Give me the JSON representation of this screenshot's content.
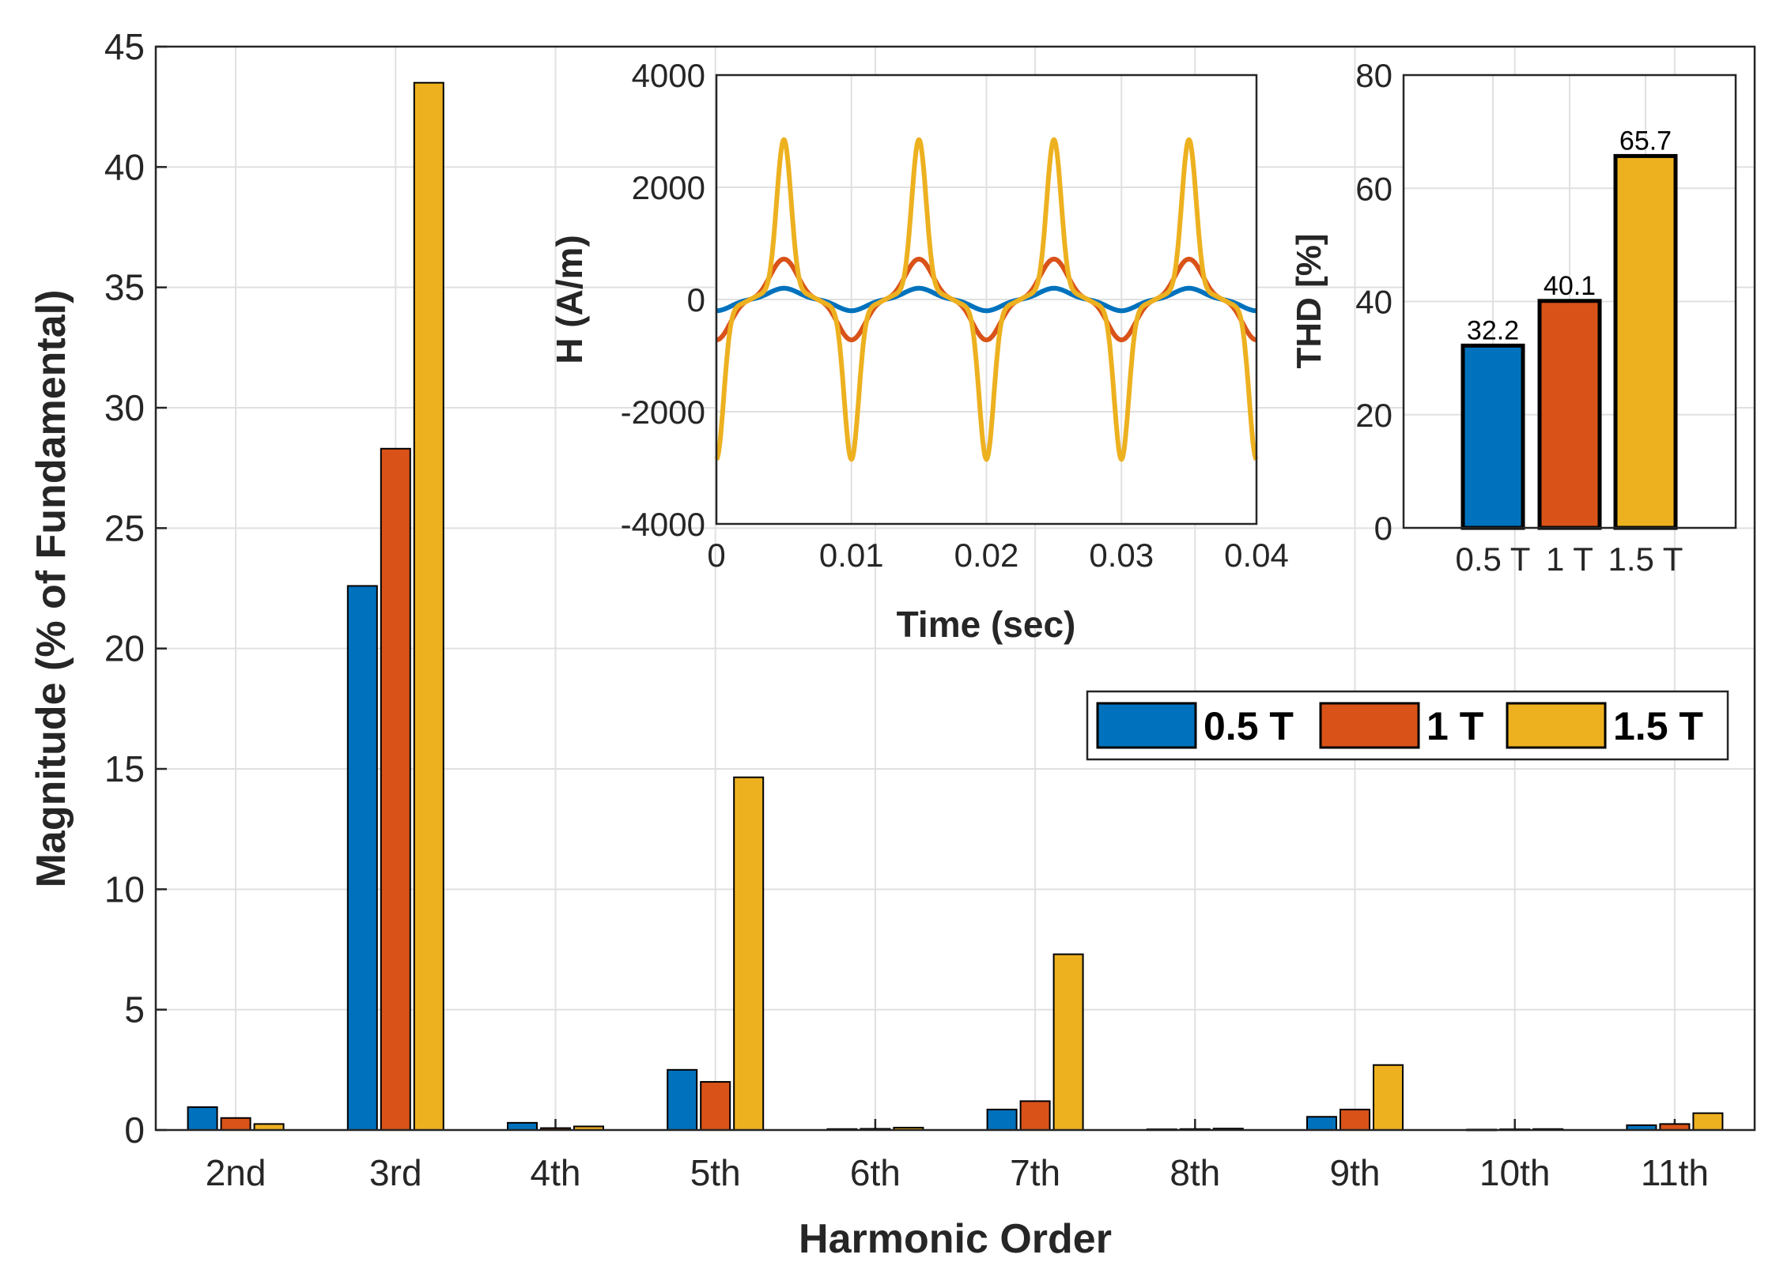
{
  "chart_data": [
    {
      "type": "bar",
      "xlabel": "Harmonic Order",
      "ylabel": "Magnitude (% of Fundamental)",
      "categories": [
        "2nd",
        "3rd",
        "4th",
        "5th",
        "6th",
        "7th",
        "8th",
        "9th",
        "10th",
        "11th"
      ],
      "series": [
        {
          "name": "0.5 T",
          "color": "#0072BD",
          "values": [
            0.95,
            22.6,
            0.3,
            2.5,
            0.04,
            0.85,
            0.03,
            0.55,
            0.02,
            0.2
          ]
        },
        {
          "name": "1 T",
          "color": "#D95319",
          "values": [
            0.5,
            28.3,
            0.08,
            2.0,
            0.05,
            1.2,
            0.04,
            0.85,
            0.03,
            0.25
          ]
        },
        {
          "name": "1.5 T",
          "color": "#EDB120",
          "values": [
            0.25,
            43.5,
            0.15,
            14.65,
            0.1,
            7.3,
            0.06,
            2.7,
            0.04,
            0.7
          ]
        }
      ],
      "ylim": [
        0,
        45
      ],
      "yticks": [
        "0",
        "5",
        "10",
        "15",
        "20",
        "25",
        "30",
        "35",
        "40",
        "45"
      ],
      "grid": true,
      "legend_position": "middle-right",
      "legend": [
        "0.5 T",
        "1 T",
        "1.5 T"
      ]
    },
    {
      "type": "line",
      "xlabel": "Time (sec)",
      "ylabel": "H (A/m)",
      "xlim": [
        0,
        0.04
      ],
      "ylim": [
        -4000,
        4000
      ],
      "xticks": [
        "0",
        "0.01",
        "0.02",
        "0.03",
        "0.04"
      ],
      "yticks": [
        "-4000",
        "-2000",
        "0",
        "2000",
        "4000"
      ],
      "period": 0.01,
      "grid": true,
      "series": [
        {
          "name": "0.5 T",
          "color": "#0072BD",
          "peak": 200
        },
        {
          "name": "1 T",
          "color": "#D95319",
          "peak": 720
        },
        {
          "name": "1.5 T",
          "color": "#EDB120",
          "peak": 2850
        }
      ]
    },
    {
      "type": "bar",
      "ylabel": "THD [%]",
      "categories": [
        "0.5 T",
        "1 T",
        "1.5 T"
      ],
      "values": [
        32.2,
        40.1,
        65.7
      ],
      "data_labels": [
        "32.2",
        "40.1",
        "65.7"
      ],
      "colors": [
        "#0072BD",
        "#D95319",
        "#EDB120"
      ],
      "ylim": [
        0,
        80
      ],
      "yticks": [
        "0",
        "20",
        "40",
        "60",
        "80"
      ],
      "grid": true
    }
  ]
}
